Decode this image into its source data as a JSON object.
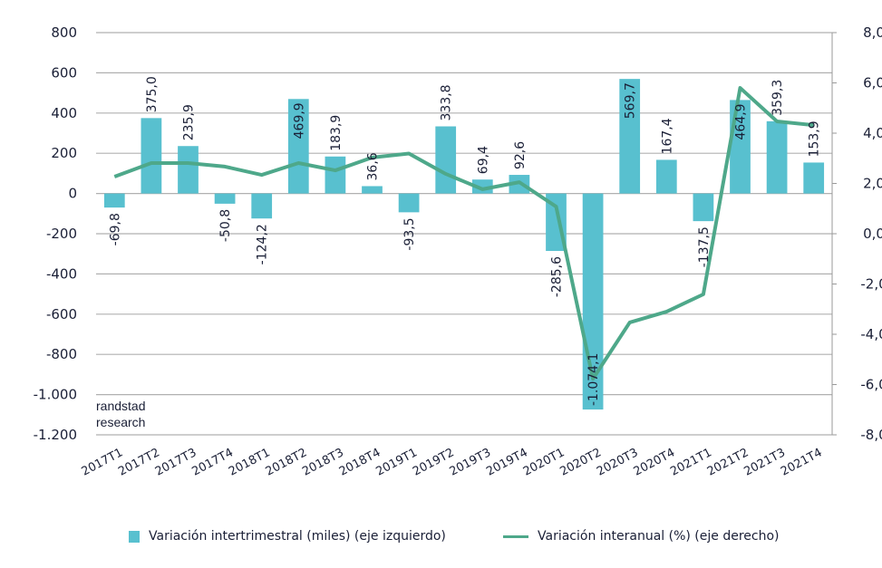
{
  "chart_data": {
    "type": "bar+line",
    "title": "",
    "categories": [
      "2017T1",
      "2017T2",
      "2017T3",
      "2017T4",
      "2018T1",
      "2018T2",
      "2018T3",
      "2018T4",
      "2019T1",
      "2019T2",
      "2019T3",
      "2019T4",
      "2020T1",
      "2020T2",
      "2020T3",
      "2020T4",
      "2021T1",
      "2021T2",
      "2021T3",
      "2021T4"
    ],
    "series": [
      {
        "name": "Variación intertrimestral (miles) (eje izquierdo)",
        "type": "bar",
        "axis": "left",
        "color": "#58c0cf",
        "values": [
          -69.8,
          375.0,
          235.9,
          -50.8,
          -124.2,
          469.9,
          183.9,
          36.6,
          -93.5,
          333.8,
          69.4,
          92.6,
          -285.6,
          -1074.1,
          569.7,
          167.4,
          -137.5,
          464.9,
          359.3,
          153.9
        ],
        "labels": [
          "-69,8",
          "375,0",
          "235,9",
          "-50,8",
          "-124,2",
          "469,9",
          "183,9",
          "36,6",
          "-93,5",
          "333,8",
          "69,4",
          "92,6",
          "-285,6",
          "-1.074,1",
          "569,7",
          "167,4",
          "-137,5",
          "464,9",
          "359,3",
          "153,9"
        ]
      },
      {
        "name": "Variación interanual (%) (eje derecho)",
        "type": "line",
        "axis": "right",
        "color": "#4ea88a",
        "values": [
          2.27,
          2.81,
          2.81,
          2.67,
          2.34,
          2.81,
          2.52,
          3.03,
          3.19,
          2.38,
          1.77,
          2.05,
          1.08,
          -5.77,
          -3.53,
          -3.1,
          -2.41,
          5.8,
          4.47,
          4.32
        ]
      }
    ],
    "left_axis": {
      "ylim": [
        -1200,
        800
      ],
      "ticks": [
        800,
        600,
        400,
        200,
        0,
        -200,
        -400,
        -600,
        -800,
        -1000,
        -1200
      ],
      "tick_labels": [
        "800",
        "600",
        "400",
        "200",
        "0",
        "-200",
        "-400",
        "-600",
        "-800",
        "-1.000",
        "-1.200"
      ]
    },
    "right_axis": {
      "ylim": [
        -8,
        8
      ],
      "ticks": [
        8,
        6,
        4,
        2,
        0,
        -2,
        -4,
        -6,
        -8
      ],
      "tick_labels": [
        "8,0",
        "6,0",
        "4,0",
        "2,0",
        "0,0",
        "-2,0",
        "-4,0",
        "-6,0",
        "-8,0"
      ]
    },
    "grid": true,
    "legend_position": "bottom",
    "annotation": [
      "randstad",
      "research"
    ]
  },
  "legend": {
    "bar_label": "Variación intertrimestral (miles) (eje izquierdo)",
    "line_label": "Variación interanual (%) (eje derecho)"
  }
}
